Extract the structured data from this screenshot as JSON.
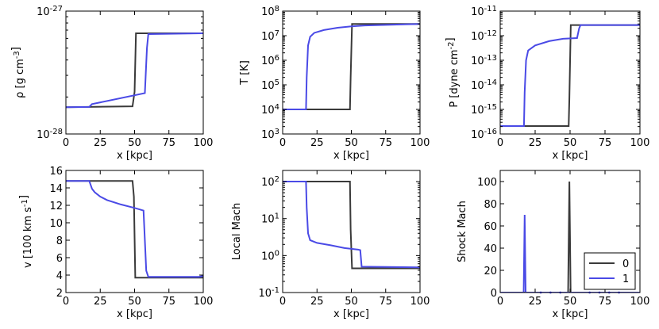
{
  "series_styles": [
    {
      "name": "0",
      "color": "#3a3a3a"
    },
    {
      "name": "1",
      "color": "#4a4ae6"
    }
  ],
  "chart_data": [
    {
      "id": "density",
      "type": "line",
      "ylabel": "ρ [g cm^-3]",
      "xlabel": "x [kpc]",
      "xlim": [
        0,
        100
      ],
      "x_ticks": [
        "0",
        "25",
        "50",
        "75",
        "100"
      ],
      "yscale": "log",
      "ylim": [
        1e-28,
        1e-27
      ],
      "y_ticks": [
        {
          "value": 1e-28,
          "mant": "10",
          "exp": "-28"
        },
        {
          "value": 1e-27,
          "mant": "10",
          "exp": "-27"
        }
      ],
      "series": [
        {
          "name": "0",
          "x": [
            0,
            48.5,
            50,
            51,
            100
          ],
          "y": [
            1.65e-28,
            1.68e-28,
            2.2e-28,
            6.6e-28,
            6.6e-28
          ]
        },
        {
          "name": "1",
          "x": [
            0,
            17,
            19,
            57.5,
            59,
            60,
            100
          ],
          "y": [
            1.65e-28,
            1.66e-28,
            1.75e-28,
            2.15e-28,
            5e-28,
            6.5e-28,
            6.6e-28
          ]
        }
      ]
    },
    {
      "id": "temperature",
      "type": "line",
      "ylabel": "T [K]",
      "xlabel": "x [kpc]",
      "xlim": [
        0,
        100
      ],
      "x_ticks": [
        "0",
        "25",
        "50",
        "75",
        "100"
      ],
      "yscale": "log",
      "ylim": [
        1000,
        100000000
      ],
      "y_ticks": [
        {
          "value": 1000,
          "mant": "10",
          "exp": "3"
        },
        {
          "value": 10000,
          "mant": "10",
          "exp": "4"
        },
        {
          "value": 100000,
          "mant": "10",
          "exp": "5"
        },
        {
          "value": 1000000,
          "mant": "10",
          "exp": "6"
        },
        {
          "value": 10000000,
          "mant": "10",
          "exp": "7"
        },
        {
          "value": 100000000,
          "mant": "10",
          "exp": "8"
        }
      ],
      "series": [
        {
          "name": "0",
          "x": [
            0,
            49,
            49.5,
            50.5,
            100
          ],
          "y": [
            10000,
            10000,
            200000,
            30000000,
            30000000
          ]
        },
        {
          "name": "1",
          "x": [
            0,
            17,
            17.5,
            18.5,
            20,
            23,
            30,
            40,
            50,
            60,
            100
          ],
          "y": [
            10000,
            10000,
            200000,
            4000000,
            9000000,
            13000000,
            17000000,
            21000000,
            24000000,
            26000000,
            30000000
          ]
        }
      ]
    },
    {
      "id": "pressure",
      "type": "line",
      "ylabel": "P [dyne cm^-2]",
      "xlabel": "x [kpc]",
      "xlim": [
        0,
        100
      ],
      "x_ticks": [
        "0",
        "25",
        "50",
        "75",
        "100"
      ],
      "yscale": "log",
      "ylim": [
        1e-16,
        1e-11
      ],
      "y_ticks": [
        {
          "value": 1e-16,
          "mant": "10",
          "exp": "-16"
        },
        {
          "value": 1e-15,
          "mant": "10",
          "exp": "-15"
        },
        {
          "value": 1e-14,
          "mant": "10",
          "exp": "-14"
        },
        {
          "value": 1e-13,
          "mant": "10",
          "exp": "-13"
        },
        {
          "value": 1e-12,
          "mant": "10",
          "exp": "-12"
        },
        {
          "value": 1e-11,
          "mant": "10",
          "exp": "-11"
        }
      ],
      "series": [
        {
          "name": "0",
          "x": [
            0,
            49,
            49.5,
            50.5,
            100
          ],
          "y": [
            2.1e-16,
            2.1e-16,
            3e-15,
            2.7e-12,
            2.7e-12
          ]
        },
        {
          "name": "1",
          "x": [
            0,
            17,
            17.5,
            18.5,
            20,
            25,
            35,
            45,
            55,
            56.5,
            57.5,
            100
          ],
          "y": [
            2.1e-16,
            2.1e-16,
            5e-15,
            1e-13,
            2.5e-13,
            4e-13,
            6e-13,
            7.5e-13,
            8e-13,
            2e-12,
            2.7e-12,
            2.7e-12
          ]
        }
      ]
    },
    {
      "id": "velocity",
      "type": "line",
      "ylabel": "v [100 km s^-1]",
      "xlabel": "x [kpc]",
      "xlim": [
        0,
        100
      ],
      "x_ticks": [
        "0",
        "25",
        "50",
        "75",
        "100"
      ],
      "yscale": "linear",
      "ylim": [
        2,
        16
      ],
      "y_ticks": [
        {
          "value": 2,
          "label": "2"
        },
        {
          "value": 4,
          "label": "4"
        },
        {
          "value": 6,
          "label": "6"
        },
        {
          "value": 8,
          "label": "8"
        },
        {
          "value": 10,
          "label": "10"
        },
        {
          "value": 12,
          "label": "12"
        },
        {
          "value": 14,
          "label": "14"
        },
        {
          "value": 16,
          "label": "16"
        }
      ],
      "series": [
        {
          "name": "0",
          "x": [
            0,
            48.5,
            49.5,
            50.5,
            100
          ],
          "y": [
            14.8,
            14.8,
            13,
            3.7,
            3.7
          ]
        },
        {
          "name": "1",
          "x": [
            0,
            17,
            19,
            21,
            25,
            30,
            40,
            50,
            56.5,
            58.5,
            60,
            97,
            100
          ],
          "y": [
            14.8,
            14.8,
            13.9,
            13.5,
            13,
            12.6,
            12.1,
            11.7,
            11.4,
            4.5,
            3.8,
            3.8,
            3.9
          ]
        }
      ]
    },
    {
      "id": "local-mach",
      "type": "line",
      "ylabel": "Local Mach",
      "xlabel": "x [kpc]",
      "xlim": [
        0,
        100
      ],
      "x_ticks": [
        "0",
        "25",
        "50",
        "75",
        "100"
      ],
      "yscale": "log",
      "ylim": [
        0.1,
        200
      ],
      "y_ticks": [
        {
          "value": 0.1,
          "mant": "10",
          "exp": "-1"
        },
        {
          "value": 1,
          "mant": "10",
          "exp": "0"
        },
        {
          "value": 10,
          "mant": "10",
          "exp": "1"
        },
        {
          "value": 100,
          "mant": "10",
          "exp": "2"
        }
      ],
      "series": [
        {
          "name": "0",
          "x": [
            0,
            49,
            49.5,
            50.5,
            100
          ],
          "y": [
            100,
            100,
            5,
            0.45,
            0.45
          ]
        },
        {
          "name": "1",
          "x": [
            0,
            17,
            17.5,
            18.5,
            20,
            25,
            35,
            45,
            55,
            56.5,
            57.5,
            100
          ],
          "y": [
            100,
            100,
            20,
            4,
            2.6,
            2.2,
            1.9,
            1.6,
            1.45,
            1.4,
            0.5,
            0.48
          ]
        }
      ]
    },
    {
      "id": "shock-mach",
      "type": "line",
      "ylabel": "Shock Mach",
      "xlabel": "x [kpc]",
      "xlim": [
        0,
        100
      ],
      "x_ticks": [
        "0",
        "25",
        "50",
        "75",
        "100"
      ],
      "yscale": "linear",
      "ylim": [
        0,
        110
      ],
      "y_ticks": [
        {
          "value": 0,
          "label": "0"
        },
        {
          "value": 20,
          "label": "20"
        },
        {
          "value": 40,
          "label": "40"
        },
        {
          "value": 60,
          "label": "60"
        },
        {
          "value": 80,
          "label": "80"
        },
        {
          "value": 100,
          "label": "100"
        }
      ],
      "legend": {
        "location": "lower-right",
        "entries": [
          "0",
          "1"
        ]
      },
      "series": [
        {
          "name": "0",
          "x": [
            0,
            48.6,
            49.5,
            50.4,
            100
          ],
          "y": [
            0,
            0,
            100,
            0,
            0
          ]
        },
        {
          "name": "1",
          "x": [
            0,
            16.8,
            17.5,
            18.2,
            100
          ],
          "y": [
            0,
            0,
            70,
            0,
            0
          ]
        }
      ]
    }
  ]
}
